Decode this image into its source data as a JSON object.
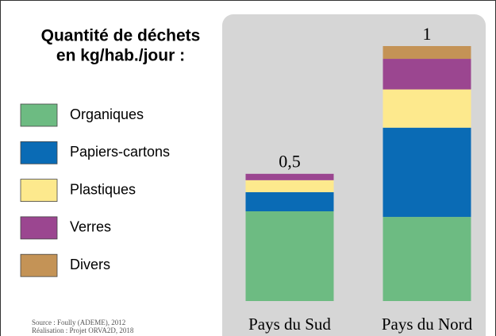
{
  "chart_data": {
    "type": "bar",
    "stacked": true,
    "title": [
      "Quantité de déchets",
      "en kg/hab./jour :"
    ],
    "categories": [
      "Pays du Sud",
      "Pays du Nord"
    ],
    "series": [
      {
        "name": "Organiques",
        "color": "#6dbb82",
        "values": [
          0.352,
          0.33
        ]
      },
      {
        "name": "Papiers-cartons",
        "color": "#0a6bb5",
        "values": [
          0.075,
          0.35
        ]
      },
      {
        "name": "Plastiques",
        "color": "#fde98d",
        "values": [
          0.047,
          0.15
        ]
      },
      {
        "name": "Verres",
        "color": "#9b4690",
        "values": [
          0.025,
          0.12
        ]
      },
      {
        "name": "Divers",
        "color": "#c49356",
        "values": [
          0,
          0.05
        ]
      }
    ],
    "totals": {
      "values": [
        0.5,
        1
      ],
      "value_labels": [
        "0,5",
        "1"
      ]
    },
    "source": [
      "Source : Foully (ADEME), 2012",
      "Réalisation : Projet ORVA2D, 2018"
    ]
  }
}
